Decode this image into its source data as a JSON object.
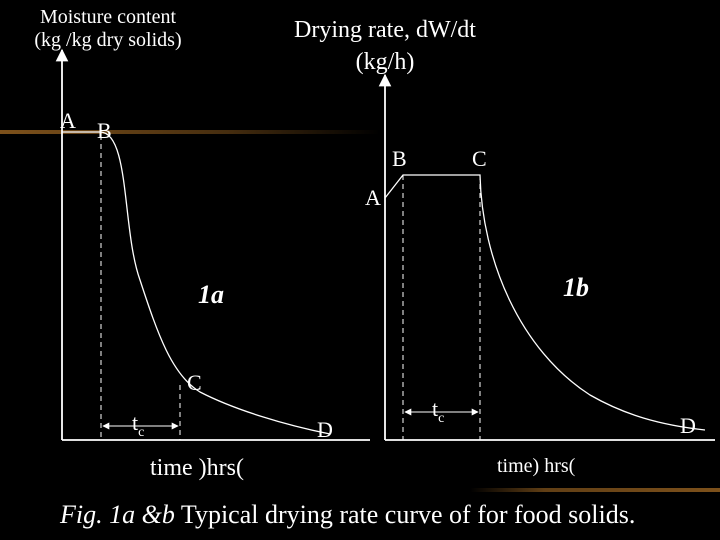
{
  "figure": {
    "left_axis_label": [
      "Moisture content",
      "(kg /kg dry solids)"
    ],
    "right_axis_label": [
      "Drying rate, dW/dt",
      "(kg/h)"
    ],
    "left_points": {
      "A": "A",
      "B": "B",
      "C": "C",
      "D": "D"
    },
    "right_points": {
      "A": "A",
      "B": "B",
      "C": "C",
      "D": "D"
    },
    "left_curve_label": "1a",
    "right_curve_label": "1b",
    "tc_main": "t",
    "tc_sub": "c",
    "left_time_label": "time )hrs(",
    "right_time_label": "time) hrs(",
    "caption_italic": "Fig. 1a &b",
    "caption_rest": " Typical drying rate curve of for food solids."
  },
  "colors": {
    "background": "#000000",
    "foreground": "#ffffff",
    "accent_band": "#8b5a1e"
  }
}
